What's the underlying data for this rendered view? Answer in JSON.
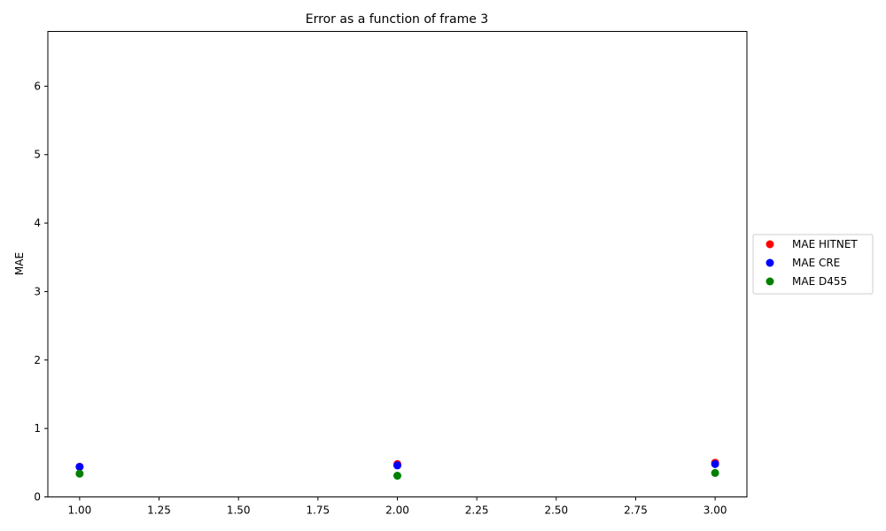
{
  "chart_data": {
    "type": "scatter",
    "title": "Error as a function of frame 3",
    "xlabel": "",
    "ylabel": "MAE",
    "xlim": [
      0.9,
      3.1
    ],
    "ylim": [
      0,
      6.8
    ],
    "xticks": [
      1.0,
      1.25,
      1.5,
      1.75,
      2.0,
      2.25,
      2.5,
      2.75,
      3.0
    ],
    "xtick_labels": [
      "1.00",
      "1.25",
      "1.50",
      "1.75",
      "2.00",
      "2.25",
      "2.50",
      "2.75",
      "3.00"
    ],
    "yticks": [
      0,
      1,
      2,
      3,
      4,
      5,
      6
    ],
    "ytick_labels": [
      "0",
      "1",
      "2",
      "3",
      "4",
      "5",
      "6"
    ],
    "grid": false,
    "legend_position": "center-right outside",
    "series": [
      {
        "name": "MAE HITNET",
        "color": "#ff0000",
        "x": [
          1,
          2,
          3
        ],
        "y": [
          0.44,
          0.48,
          0.5
        ]
      },
      {
        "name": "MAE CRE",
        "color": "#0000ff",
        "x": [
          1,
          2,
          3
        ],
        "y": [
          0.44,
          0.46,
          0.48
        ]
      },
      {
        "name": "MAE D455",
        "color": "#008000",
        "x": [
          1,
          2,
          3
        ],
        "y": [
          0.34,
          0.31,
          0.35
        ]
      }
    ]
  }
}
